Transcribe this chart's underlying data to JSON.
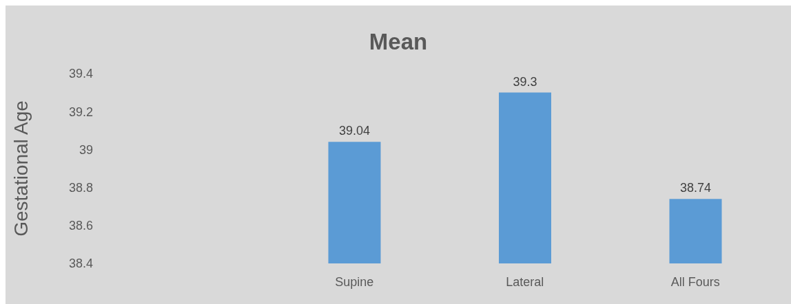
{
  "chart_data": {
    "type": "bar",
    "title": "Mean",
    "ylabel": "Gestational Age",
    "categories": [
      null,
      "Supine",
      "Lateral",
      "All Fours"
    ],
    "values": [
      null,
      39.04,
      39.3,
      38.74
    ],
    "color": "#5b9bd5",
    "ylim": [
      38.4,
      39.4
    ],
    "yticks": [
      38.4,
      38.6,
      38.8,
      39,
      39.2,
      39.4
    ],
    "data_labels": true
  }
}
